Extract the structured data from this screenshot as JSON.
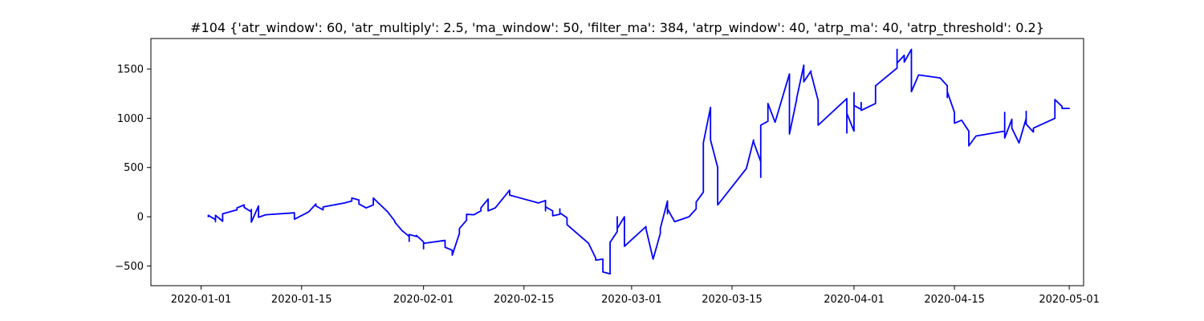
{
  "chart_data": {
    "type": "line",
    "title": "#104 {'atr_window': 60, 'atr_multiply': 2.5, 'ma_window': 50, 'filter_ma': 384, 'atrp_window': 40, 'atrp_ma': 40, 'atrp_threshold': 0.2}",
    "xlabel": "",
    "ylabel": "",
    "x_axis_type": "date",
    "xlim": [
      "2019-12-25",
      "2020-05-03"
    ],
    "ylim": [
      -700,
      1810
    ],
    "x_ticks": [
      "2020-01-01",
      "2020-01-15",
      "2020-02-01",
      "2020-02-15",
      "2020-03-01",
      "2020-03-15",
      "2020-04-01",
      "2020-04-15",
      "2020-05-01"
    ],
    "y_ticks": [
      -500,
      0,
      500,
      1000,
      1500
    ],
    "grid": false,
    "series": [
      {
        "color": "#0000ff",
        "x": [
          "2020-01-02",
          "2020-01-02",
          "2020-01-03",
          "2020-01-03",
          "2020-01-03",
          "2020-01-03",
          "2020-01-03",
          "2020-01-04",
          "2020-01-04",
          "2020-01-04",
          "2020-01-06",
          "2020-01-06",
          "2020-01-07",
          "2020-01-07",
          "2020-01-08",
          "2020-01-08",
          "2020-01-08",
          "2020-01-08",
          "2020-01-09",
          "2020-01-09",
          "2020-01-09",
          "2020-01-10",
          "2020-01-14",
          "2020-01-14",
          "2020-01-14",
          "2020-01-16",
          "2020-01-17",
          "2020-01-17",
          "2020-01-18",
          "2020-01-18",
          "2020-01-21",
          "2020-01-22",
          "2020-01-22",
          "2020-01-23",
          "2020-01-23",
          "2020-01-24",
          "2020-01-25",
          "2020-01-25",
          "2020-01-27",
          "2020-01-28",
          "2020-01-28",
          "2020-01-29",
          "2020-01-30",
          "2020-01-30",
          "2020-01-30",
          "2020-01-30",
          "2020-01-31",
          "2020-01-31",
          "2020-02-01",
          "2020-02-01",
          "2020-02-01",
          "2020-02-04",
          "2020-02-04",
          "2020-02-04",
          "2020-02-05",
          "2020-02-05",
          "2020-02-05",
          "2020-02-06",
          "2020-02-06",
          "2020-02-07",
          "2020-02-07",
          "2020-02-07",
          "2020-02-08",
          "2020-02-09",
          "2020-02-09",
          "2020-02-10",
          "2020-02-10",
          "2020-02-10",
          "2020-02-11",
          "2020-02-13",
          "2020-02-13",
          "2020-02-14",
          "2020-02-17",
          "2020-02-18",
          "2020-02-18",
          "2020-02-18",
          "2020-02-18",
          "2020-02-19",
          "2020-02-19",
          "2020-02-20",
          "2020-02-20",
          "2020-02-20",
          "2020-02-20",
          "2020-02-21",
          "2020-02-21",
          "2020-02-21",
          "2020-02-24",
          "2020-02-25",
          "2020-02-25",
          "2020-02-26",
          "2020-02-26",
          "2020-02-26",
          "2020-02-27",
          "2020-02-27",
          "2020-02-27",
          "2020-02-27",
          "2020-02-28",
          "2020-02-28",
          "2020-02-28",
          "2020-02-28",
          "2020-02-29",
          "2020-02-29",
          "2020-03-03",
          "2020-03-03",
          "2020-03-04",
          "2020-03-05",
          "2020-03-05",
          "2020-03-05",
          "2020-03-06",
          "2020-03-06",
          "2020-03-06",
          "2020-03-07",
          "2020-03-09",
          "2020-03-10",
          "2020-03-10",
          "2020-03-11",
          "2020-03-11",
          "2020-03-12",
          "2020-03-12",
          "2020-03-13",
          "2020-03-13",
          "2020-03-17",
          "2020-03-18",
          "2020-03-18",
          "2020-03-19",
          "2020-03-19",
          "2020-03-19",
          "2020-03-19",
          "2020-03-20",
          "2020-03-20",
          "2020-03-21",
          "2020-03-23",
          "2020-03-23",
          "2020-03-24",
          "2020-03-24",
          "2020-03-25",
          "2020-03-25",
          "2020-03-25",
          "2020-03-26",
          "2020-03-26",
          "2020-03-27",
          "2020-03-27",
          "2020-03-31",
          "2020-03-31",
          "2020-03-31",
          "2020-04-01",
          "2020-04-01",
          "2020-04-01",
          "2020-04-02",
          "2020-04-02",
          "2020-04-02",
          "2020-04-04",
          "2020-04-04",
          "2020-04-07",
          "2020-04-07",
          "2020-04-07",
          "2020-04-08",
          "2020-04-08",
          "2020-04-08",
          "2020-04-09",
          "2020-04-09",
          "2020-04-10",
          "2020-04-13",
          "2020-04-14",
          "2020-04-14",
          "2020-04-14",
          "2020-04-15",
          "2020-04-15",
          "2020-04-16",
          "2020-04-16",
          "2020-04-17",
          "2020-04-17",
          "2020-04-17",
          "2020-04-18",
          "2020-04-22",
          "2020-04-22",
          "2020-04-22",
          "2020-04-23",
          "2020-04-23",
          "2020-04-24",
          "2020-04-25",
          "2020-04-25",
          "2020-04-25",
          "2020-04-26",
          "2020-04-26",
          "2020-04-29",
          "2020-04-29",
          "2020-04-29",
          "2020-04-30",
          "2020-04-30",
          "2020-05-01"
        ],
        "y": [
          0,
          15,
          -30,
          5,
          -50,
          -35,
          15,
          -45,
          0,
          30,
          70,
          90,
          120,
          95,
          50,
          70,
          75,
          -55,
          110,
          50,
          -5,
          20,
          40,
          5,
          -25,
          50,
          130,
          110,
          70,
          100,
          140,
          160,
          190,
          170,
          130,
          90,
          120,
          190,
          50,
          -45,
          -55,
          -140,
          -200,
          -250,
          -195,
          -180,
          -200,
          -190,
          -255,
          -325,
          -270,
          -240,
          -270,
          -310,
          -340,
          -360,
          -390,
          -170,
          -120,
          -35,
          5,
          25,
          20,
          60,
          90,
          180,
          120,
          60,
          90,
          270,
          220,
          200,
          140,
          165,
          80,
          60,
          100,
          60,
          10,
          25,
          30,
          80,
          40,
          -10,
          -60,
          -80,
          -270,
          -420,
          -440,
          -430,
          -520,
          -560,
          -580,
          -510,
          -380,
          -260,
          -150,
          -20,
          0,
          -120,
          0,
          -300,
          -100,
          -120,
          -430,
          -170,
          -150,
          -120,
          160,
          30,
          80,
          -50,
          0,
          80,
          150,
          250,
          750,
          1110,
          780,
          500,
          120,
          490,
          780,
          760,
          560,
          450,
          400,
          930,
          970,
          1150,
          960,
          1450,
          840,
          1190,
          1200,
          1540,
          1420,
          1370,
          1480,
          1460,
          1180,
          930,
          1200,
          850,
          1050,
          870,
          1260,
          1130,
          1090,
          1160,
          1080,
          1150,
          1330,
          1510,
          1700,
          1560,
          1640,
          1600,
          1570,
          1700,
          1270,
          1440,
          1410,
          1330,
          1210,
          1270,
          1060,
          950,
          980,
          980,
          870,
          750,
          720,
          820,
          870,
          1060,
          800,
          990,
          900,
          750,
          1000,
          1070,
          940,
          860,
          900,
          1000,
          1120,
          1190,
          1120,
          1100,
          1100
        ]
      }
    ]
  }
}
